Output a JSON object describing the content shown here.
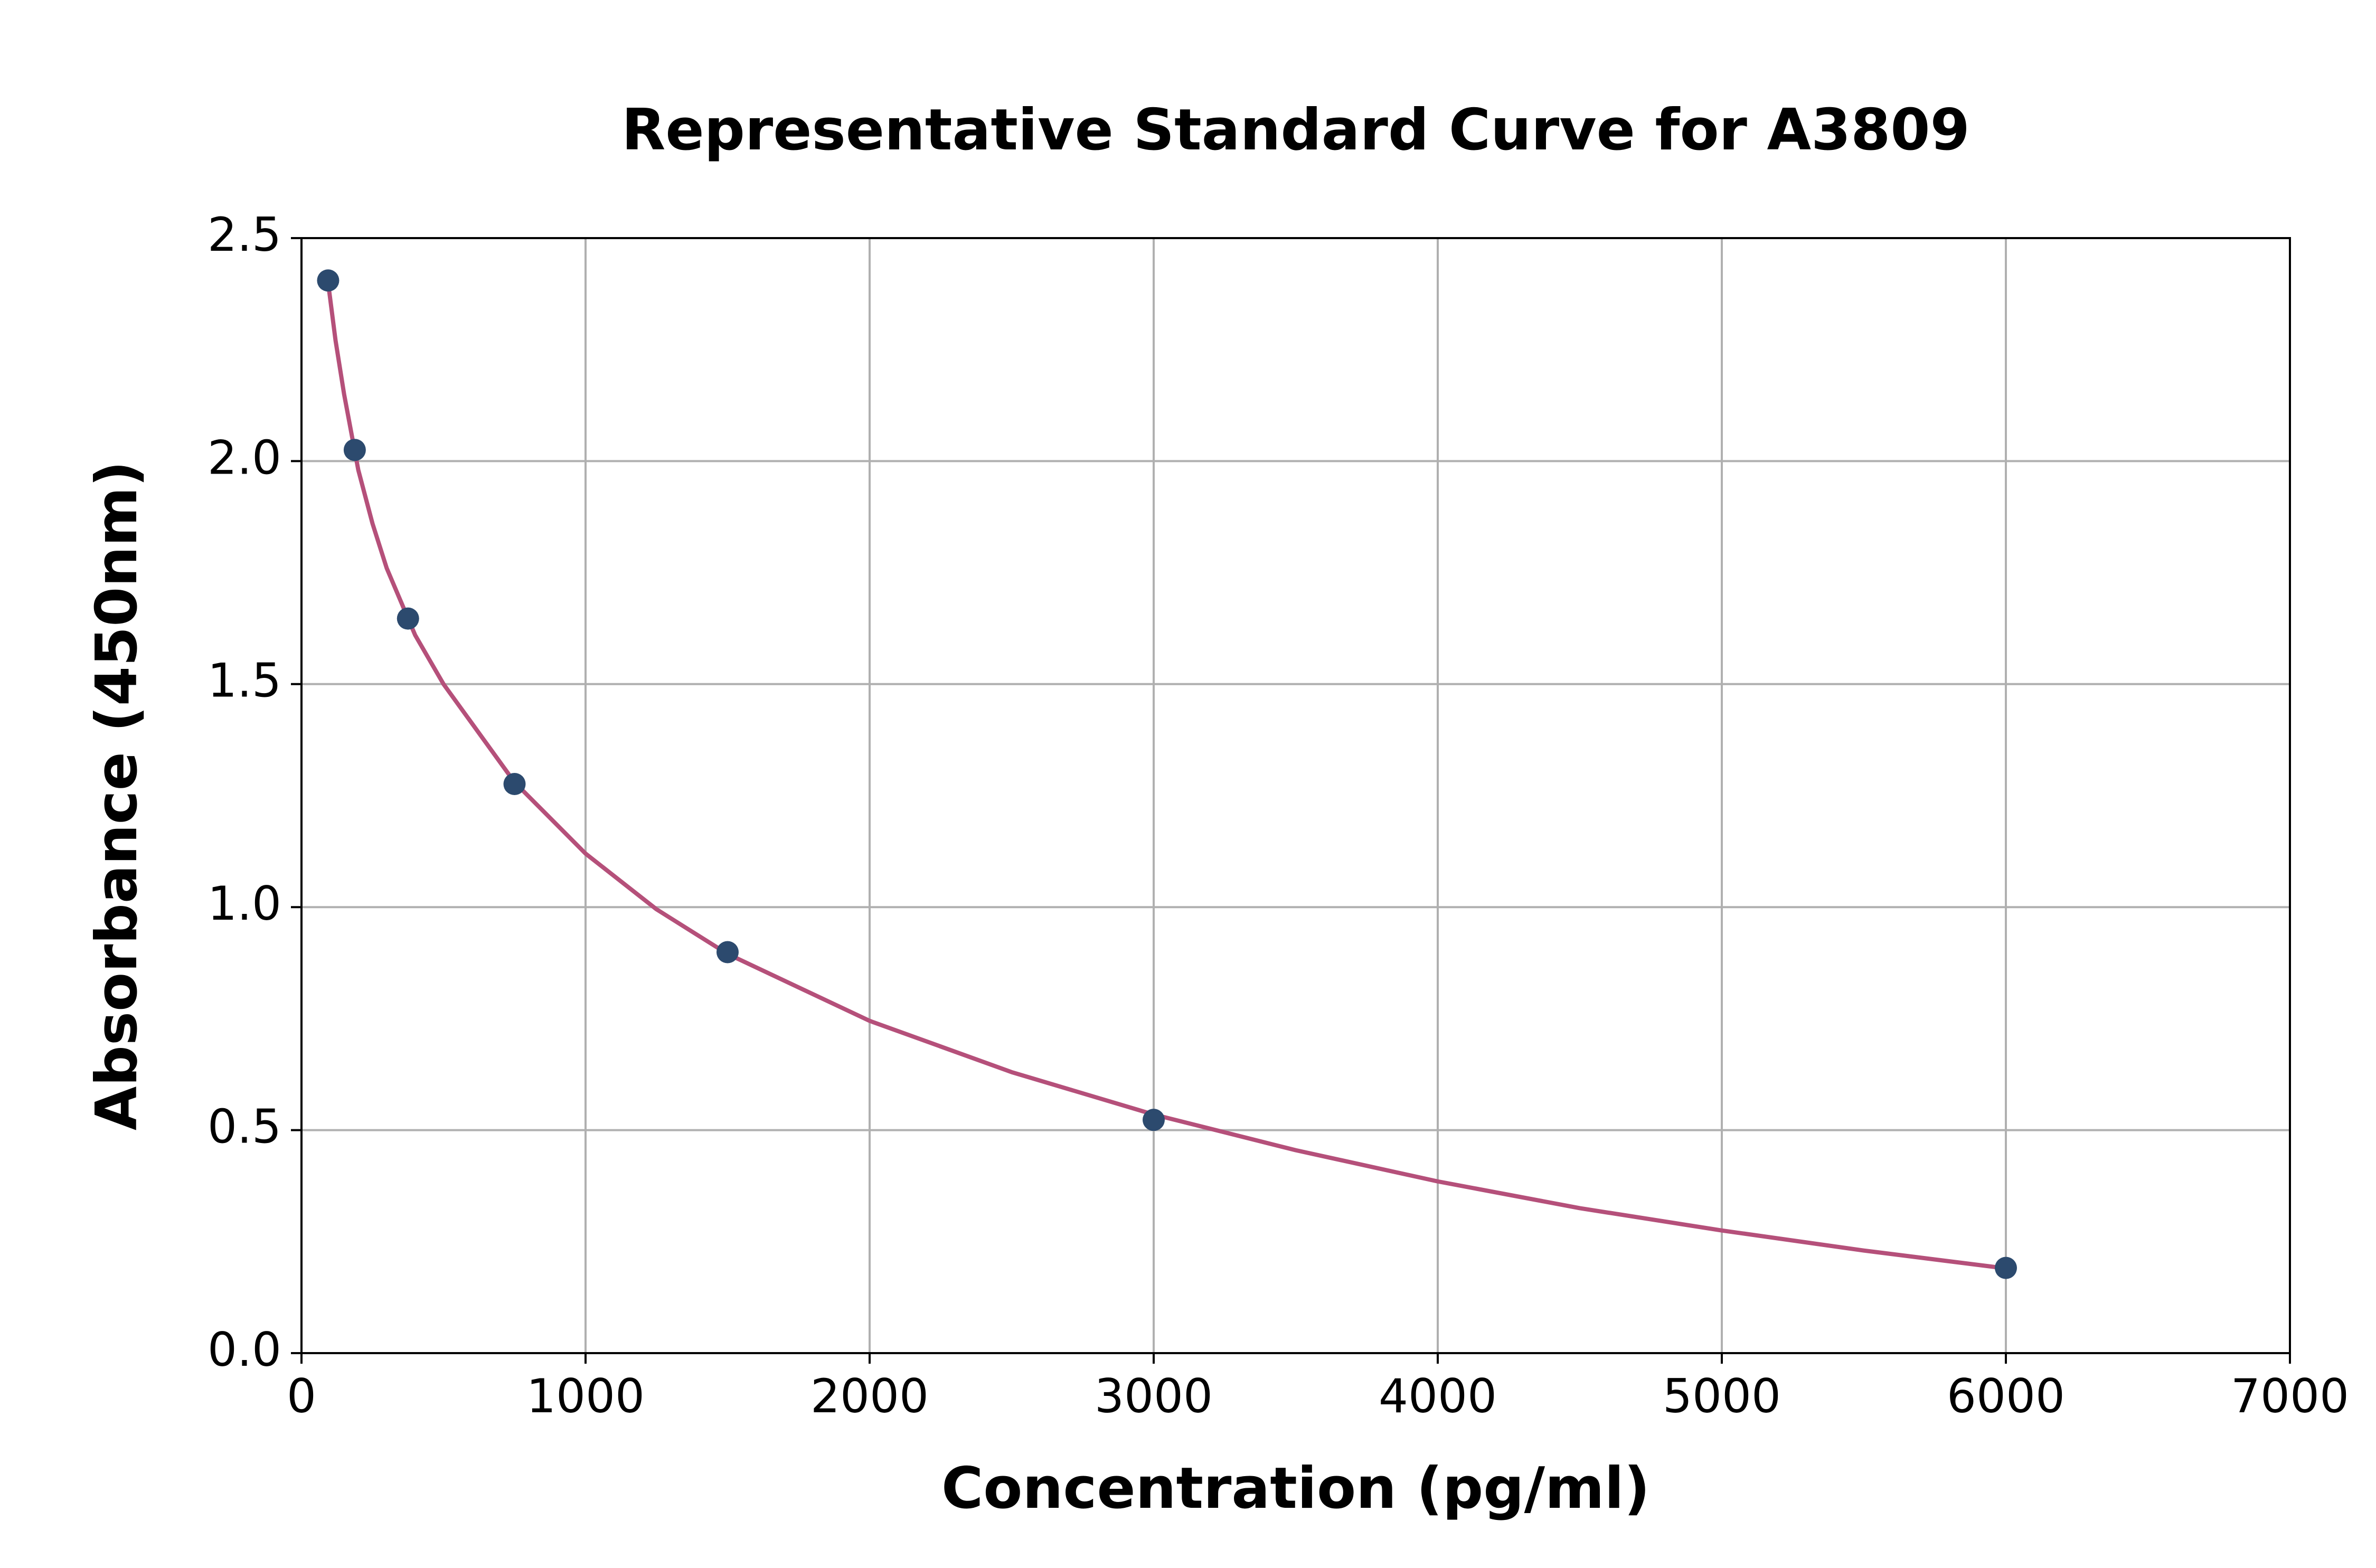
{
  "chart_data": {
    "type": "scatter",
    "title": "Representative Standard Curve for A3809",
    "x_label": "Concentration (pg/ml)",
    "y_label": "Absorbance (450nm)",
    "x": [
      93.75,
      187.5,
      375,
      750,
      1500,
      3000,
      6000
    ],
    "values": [
      2.405,
      2.025,
      1.647,
      1.276,
      0.899,
      0.523,
      0.191
    ],
    "color": "#2c4a6e",
    "curve": {
      "color": "#b5507a",
      "x": [
        93.75,
        120,
        150,
        200,
        250,
        300,
        400,
        500,
        750,
        1000,
        1250,
        1500,
        2000,
        2500,
        3000,
        3500,
        4000,
        4500,
        5000,
        5500,
        6000
      ],
      "y": [
        2.4,
        2.27,
        2.15,
        1.98,
        1.86,
        1.76,
        1.61,
        1.5,
        1.28,
        1.12,
        0.995,
        0.895,
        0.745,
        0.63,
        0.535,
        0.455,
        0.385,
        0.325,
        0.275,
        0.23,
        0.19
      ]
    },
    "xlim": [
      0,
      7000
    ],
    "xticks": [
      0,
      1000,
      2000,
      3000,
      4000,
      5000,
      6000,
      7000
    ],
    "ylim": [
      0,
      2.5
    ],
    "yticks": [
      {
        "value": 0,
        "label": "0.0"
      },
      0.5,
      {
        "value": 1,
        "label": "1.0"
      },
      1.5,
      {
        "value": 2,
        "label": "2.0"
      },
      2.5
    ],
    "grid": true
  }
}
